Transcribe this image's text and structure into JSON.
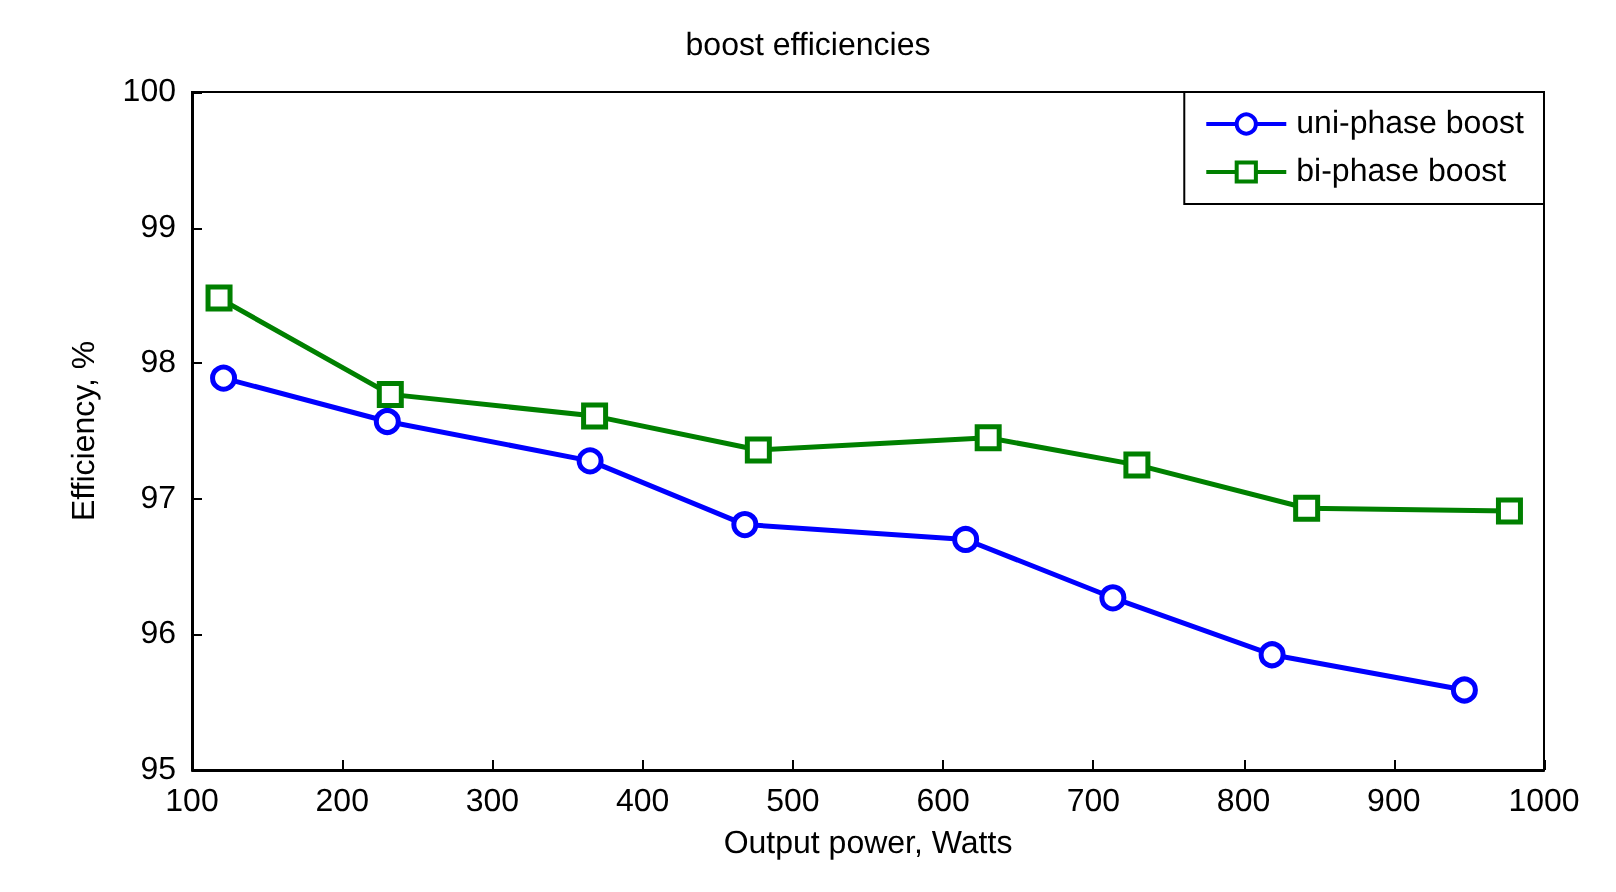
{
  "chart_data": {
    "type": "line",
    "title": "boost efficiencies",
    "xlabel": "Output power, Watts",
    "ylabel": "Efficiency, %",
    "xlim": [
      100,
      1000
    ],
    "xticks": [
      100,
      200,
      300,
      400,
      500,
      600,
      700,
      800,
      900,
      1000
    ],
    "ylim": [
      95,
      100
    ],
    "yticks": [
      95,
      96,
      97,
      98,
      99,
      100
    ],
    "grid": false,
    "legend": "top right",
    "series": [
      {
        "name": "uni-phase boost",
        "color": "#0000ff",
        "marker": "circle",
        "x": [
          121,
          230,
          365,
          468,
          615,
          713,
          819,
          947
        ],
        "values": [
          97.89,
          97.57,
          97.28,
          96.81,
          96.7,
          96.27,
          95.85,
          95.59
        ]
      },
      {
        "name": "bi-phase boost",
        "color": "#008000",
        "marker": "square",
        "x": [
          118,
          232,
          368,
          477,
          630,
          729,
          842,
          977
        ],
        "values": [
          98.48,
          97.77,
          97.61,
          97.36,
          97.45,
          97.25,
          96.93,
          96.91
        ]
      }
    ]
  }
}
